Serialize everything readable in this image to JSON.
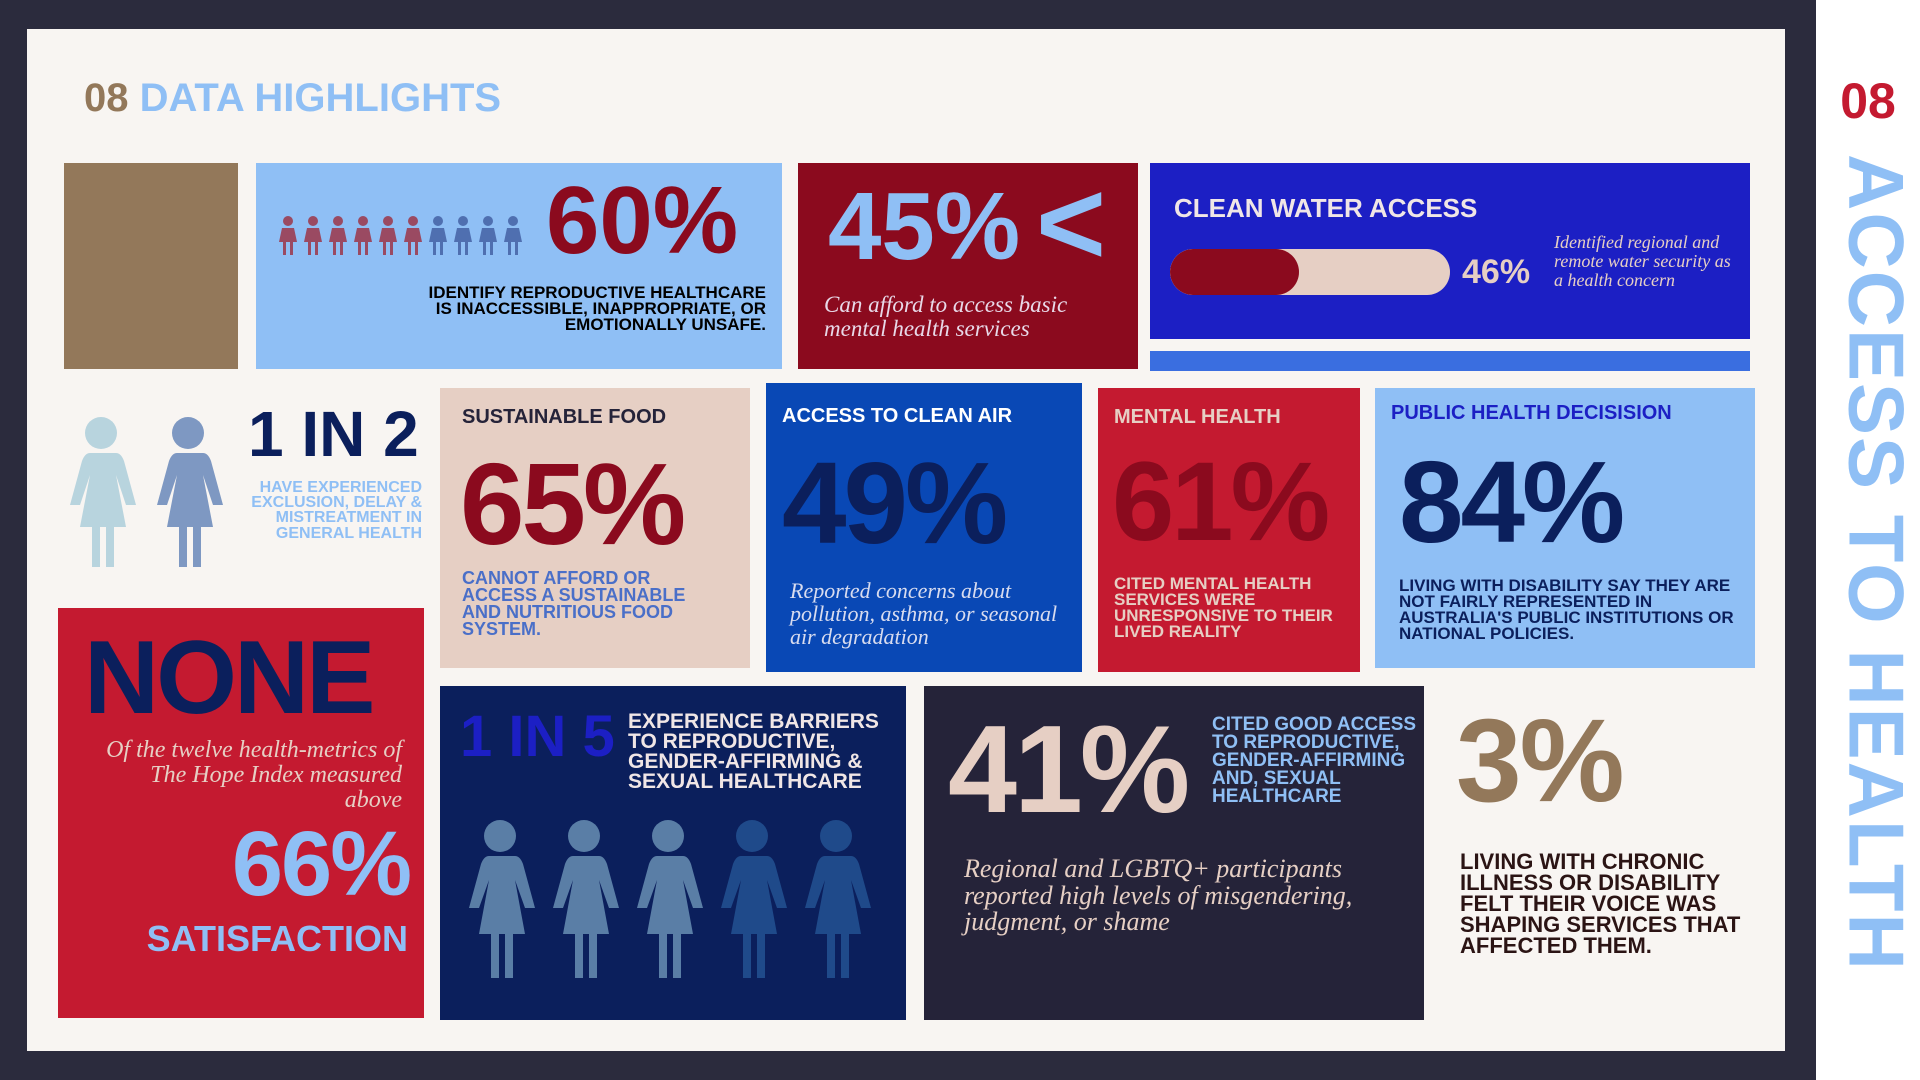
{
  "header": {
    "number": "08",
    "title": "DATA HIGHLIGHTS"
  },
  "side": {
    "number": "08",
    "title": "ACCESS TO HEALTH"
  },
  "colors": {
    "background": "#2b2b3d",
    "panel": "#f8f5f2",
    "light_blue": "#8fbff5",
    "maroon": "#8b0a1e",
    "red": "#c41a30",
    "navy": "#0b1f5c",
    "royal_blue": "#1c1fc4",
    "tan": "#93785a",
    "beige": "#e6cfc4",
    "dark": "#252339"
  },
  "stats": {
    "reproductive_60": {
      "value": "60%",
      "text": "IDENTIFY REPRODUCTIVE HEALTHCARE IS INACCESSIBLE, INAPPROPRIATE, OR EMOTIONALLY UNSAFE."
    },
    "mental_afford_45": {
      "value": "45%",
      "symbol": "<",
      "text": "Can afford to access basic mental health services"
    },
    "clean_water": {
      "label": "CLEAN WATER ACCESS",
      "value": "46%",
      "fraction": 0.46,
      "text": "Identified regional and remote water security as a health concern"
    },
    "one_in_two": {
      "value": "1 IN 2",
      "text": "HAVE EXPERIENCED EXCLUSION, DELAY & MISTREATMENT IN GENERAL HEALTH"
    },
    "food": {
      "label": "SUSTAINABLE FOOD",
      "value": "65%",
      "text": "CANNOT AFFORD OR ACCESS A SUSTAINABLE AND NUTRITIOUS FOOD SYSTEM."
    },
    "air": {
      "label": "ACCESS TO CLEAN AIR",
      "value": "49%",
      "text": "Reported concerns about pollution, asthma, or seasonal air degradation"
    },
    "mental": {
      "label": "MENTAL HEALTH",
      "value": "61%",
      "text": "CITED MENTAL HEALTH SERVICES WERE UNRESPONSIVE TO THEIR LIVED REALITY"
    },
    "public": {
      "label": "PUBLIC HEALTH DECISISION",
      "value": "84%",
      "text": "LIVING WITH DISABILITY SAY THEY ARE NOT FAIRLY REPRESENTED IN AUSTRALIA'S PUBLIC INSTITUTIONS OR NATIONAL POLICIES."
    },
    "none": {
      "value": "NONE",
      "text": "Of the twelve health-metrics of The Hope Index measured above",
      "percent": "66%",
      "label": "SATISFACTION"
    },
    "one_in_five": {
      "value": "1 IN 5",
      "text": "EXPERIENCE BARRIERS TO REPRODUCTIVE, GENDER-AFFIRMING & SEXUAL HEALTHCARE"
    },
    "good_access": {
      "value": "41%",
      "text": "CITED GOOD ACCESS TO REPRODUCTIVE, GENDER-AFFIRMING AND, SEXUAL HEALTHCARE",
      "note": "Regional and LGBTQ+ participants reported high levels of misgendering, judgment, or shame"
    },
    "chronic": {
      "value": "3%",
      "text": "LIVING WITH CHRONIC ILLNESS OR DISABILITY FELT THEIR VOICE WAS  SHAPING SERVICES THAT AFFECTED THEM."
    }
  }
}
